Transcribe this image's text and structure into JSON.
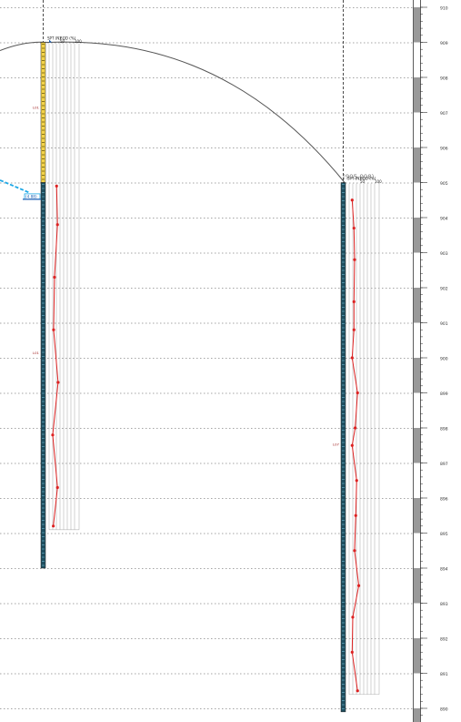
{
  "elevation_scale": {
    "top": 910,
    "bottom": 890,
    "ticks": [
      "910",
      "909",
      "908",
      "907",
      "906",
      "905",
      "904",
      "903",
      "902",
      "901",
      "900",
      "899",
      "898",
      "897",
      "896",
      "895",
      "894",
      "893",
      "892",
      "891",
      "890"
    ]
  },
  "boreholes": [
    {
      "id": "bh-left",
      "top_elevation": 909,
      "bottom_elevation": 894,
      "strata": [
        {
          "type": "overburden",
          "top": 909,
          "bottom": 905
        },
        {
          "type": "rock",
          "top": 905,
          "bottom": 894
        }
      ],
      "layer_labels": [
        {
          "text": "L01",
          "elevation": 907.1
        },
        {
          "text": "L01",
          "elevation": 900.1
        }
      ],
      "water_level": {
        "text": "(4.88)",
        "elevation": 904.6
      },
      "spt_header": {
        "spt": "SPT (N)",
        "rqd": "RQD (%)",
        "mid": "50",
        "max": "100"
      },
      "rqd_values": [
        {
          "elev": 904.9,
          "rqd": 25
        },
        {
          "elev": 903.8,
          "rqd": 28
        },
        {
          "elev": 902.3,
          "rqd": 18
        },
        {
          "elev": 900.8,
          "rqd": 15
        },
        {
          "elev": 899.3,
          "rqd": 30
        },
        {
          "elev": 897.8,
          "rqd": 12
        },
        {
          "elev": 896.3,
          "rqd": 28
        },
        {
          "elev": 895.2,
          "rqd": 14
        }
      ]
    },
    {
      "id": "bh-right",
      "top_elevation": 905,
      "bottom_elevation": 889.9,
      "strata": [
        {
          "type": "rock",
          "top": 905,
          "bottom": 889.9
        }
      ],
      "elevation_label": "(905.008)",
      "layer_labels": [
        {
          "text": "L07",
          "elevation": 897.5
        }
      ],
      "spt_header": {
        "spt": "SPT (N)",
        "rqd": "RQD (%)",
        "mid": "50",
        "max": "100"
      },
      "rqd_values": [
        {
          "elev": 904.5,
          "rqd": 10
        },
        {
          "elev": 903.7,
          "rqd": 16
        },
        {
          "elev": 902.8,
          "rqd": 18
        },
        {
          "elev": 901.6,
          "rqd": 16
        },
        {
          "elev": 900.8,
          "rqd": 16
        },
        {
          "elev": 900.0,
          "rqd": 10
        },
        {
          "elev": 899.0,
          "rqd": 28
        },
        {
          "elev": 898.0,
          "rqd": 20
        },
        {
          "elev": 897.5,
          "rqd": 10
        },
        {
          "elev": 896.5,
          "rqd": 25
        },
        {
          "elev": 895.5,
          "rqd": 22
        },
        {
          "elev": 894.5,
          "rqd": 18
        },
        {
          "elev": 893.5,
          "rqd": 32
        },
        {
          "elev": 892.6,
          "rqd": 12
        },
        {
          "elev": 891.6,
          "rqd": 10
        },
        {
          "elev": 890.5,
          "rqd": 28
        }
      ]
    }
  ],
  "colors": {
    "grid": "#888888",
    "axis": "#333333",
    "overburden": "#f2d24b",
    "rock": "#1f4f60",
    "rqd_line": "#dd2222",
    "water": "#1ea8e6",
    "ground": "#555555",
    "scale_bar": "#999999"
  }
}
